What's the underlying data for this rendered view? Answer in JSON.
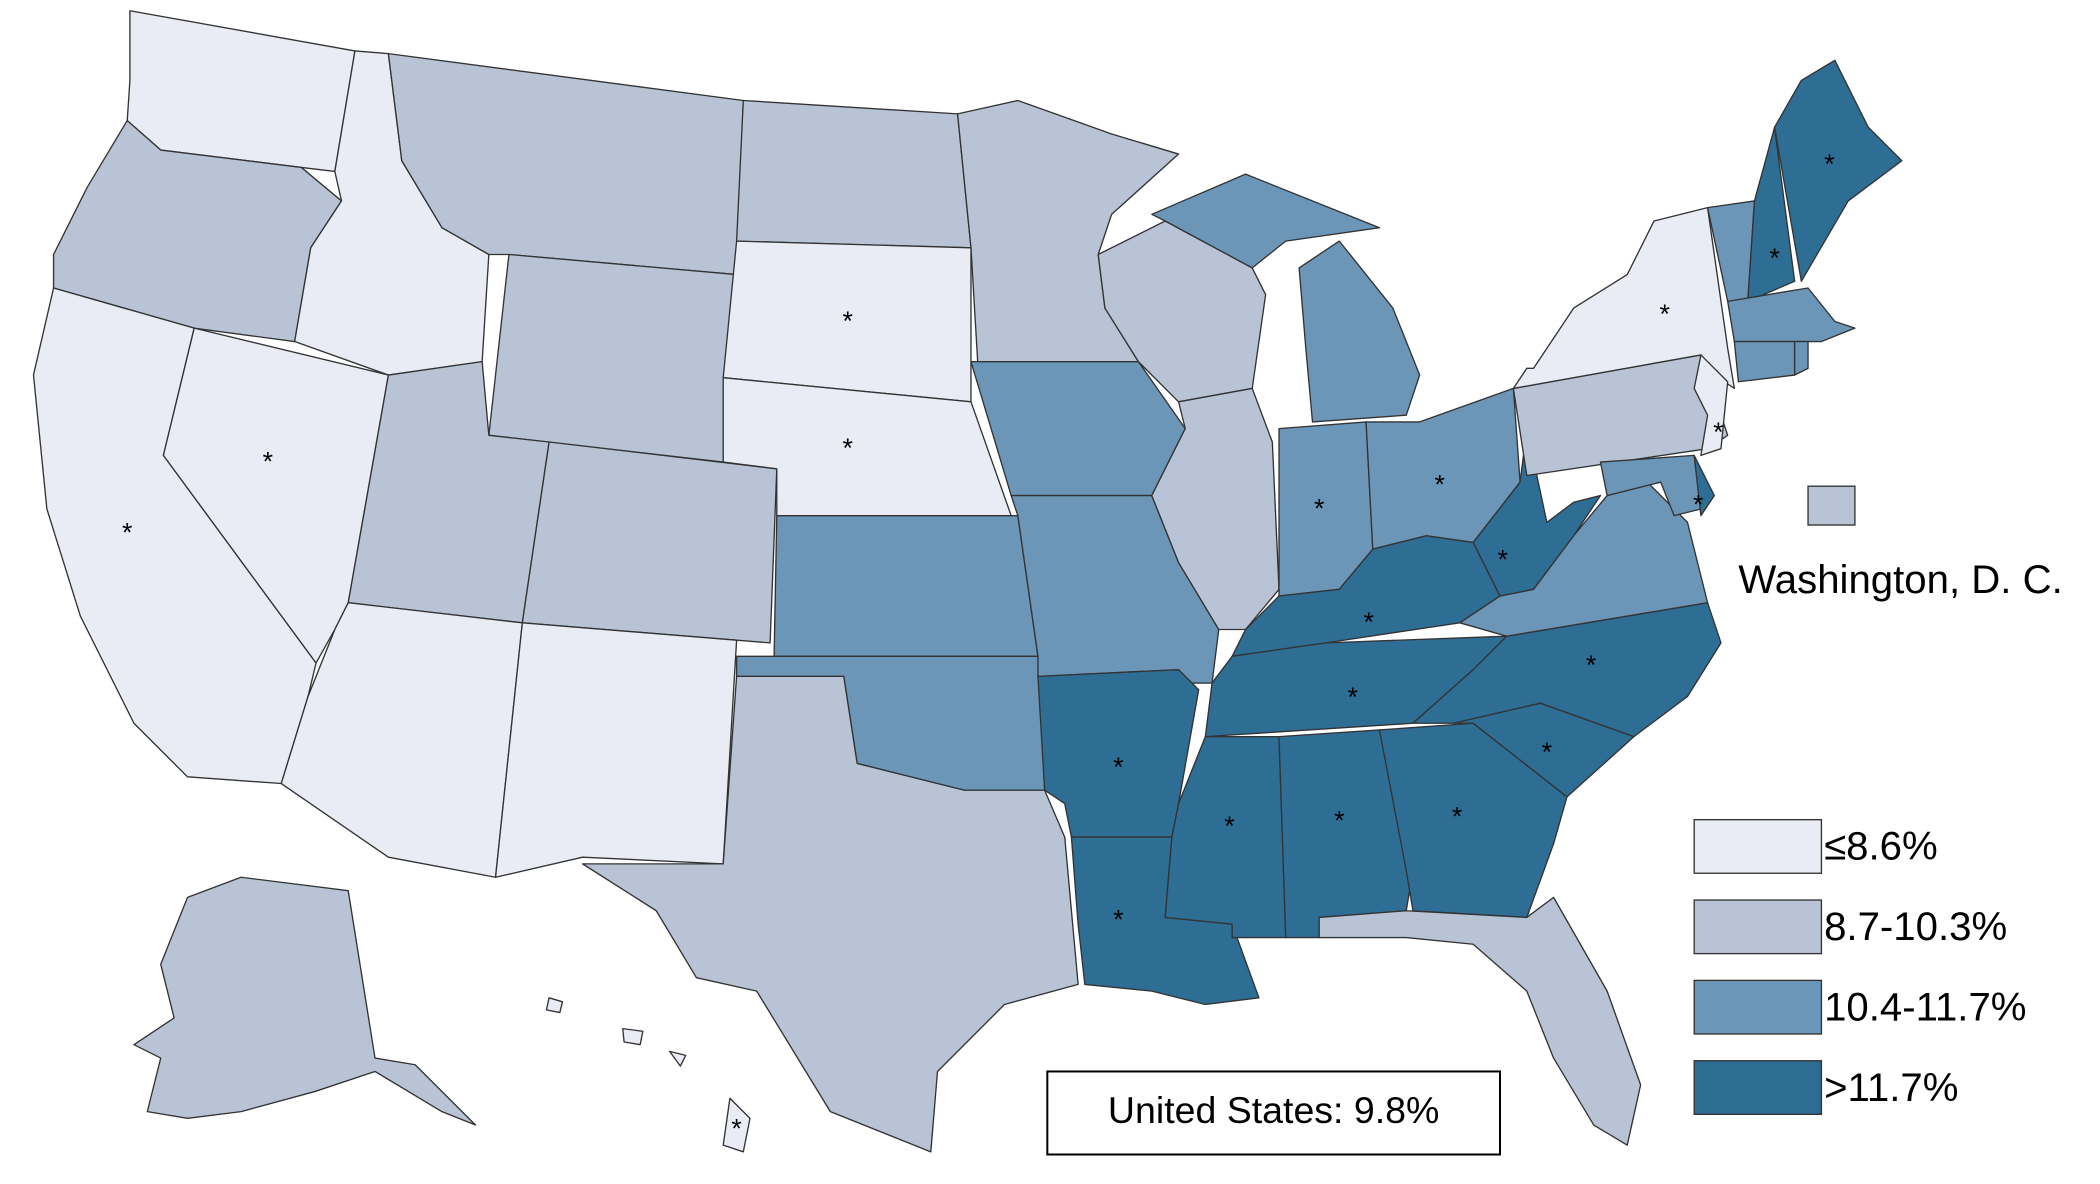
{
  "legend": [
    {
      "label": "≤8.6%",
      "color": "#eaecf5"
    },
    {
      "label": "8.7-10.3%",
      "color": "#b8c4d6"
    },
    {
      "label": "10.4-11.7%",
      "color": "#6b96b8"
    },
    {
      "label": ">11.7%",
      "color": "#2e6d94"
    }
  ],
  "summary": "United States: 9.8%",
  "dc": {
    "label": "Washington, D. C.",
    "color": "#b8c4d6"
  },
  "regions": [
    {
      "color": "#eaecf5"
    },
    {
      "color": "#b8c4d6"
    },
    {
      "color": "#eaecf5",
      "mark": "*"
    },
    {
      "color": "#eaecf5",
      "mark": "*"
    },
    {
      "color": "#eaecf5"
    },
    {
      "color": "#b8c4d6"
    },
    {
      "color": "#b8c4d6"
    },
    {
      "color": "#b8c4d6"
    },
    {
      "color": "#b8c4d6"
    },
    {
      "color": "#eaecf5"
    },
    {
      "color": "#eaecf5"
    },
    {
      "color": "#b8c4d6"
    },
    {
      "color": "#eaecf5",
      "mark": "*"
    },
    {
      "color": "#eaecf5",
      "mark": "*"
    },
    {
      "color": "#6b96b8"
    },
    {
      "color": "#6b96b8"
    },
    {
      "color": "#b8c4d6"
    },
    {
      "color": "#b8c4d6"
    },
    {
      "color": "#6b96b8"
    },
    {
      "color": "#6b96b8"
    },
    {
      "color": "#2e6d94",
      "mark": "*"
    },
    {
      "color": "#2e6d94",
      "mark": "*"
    },
    {
      "color": "#b8c4d6"
    },
    {
      "color": "#b8c4d6"
    },
    {
      "color": "#6b96b8"
    },
    {
      "color": "#6b96b8",
      "mark": "*"
    },
    {
      "color": "#6b96b8",
      "mark": "*"
    },
    {
      "color": "#2e6d94",
      "mark": "*"
    },
    {
      "color": "#2e6d94",
      "mark": "*"
    },
    {
      "color": "#2e6d94",
      "mark": "*"
    },
    {
      "color": "#2e6d94",
      "mark": "*"
    },
    {
      "color": "#2e6d94",
      "mark": "*"
    },
    {
      "color": "#b8c4d6"
    },
    {
      "color": "#2e6d94",
      "mark": "*"
    },
    {
      "color": "#2e6d94",
      "mark": "*"
    },
    {
      "color": "#6b96b8"
    },
    {
      "color": "#2e6d94",
      "mark": "*"
    },
    {
      "color": "#b8c4d6"
    },
    {
      "color": "#eaecf5",
      "mark": "*"
    },
    {
      "color": "#eaecf5",
      "mark": "*"
    },
    {
      "color": "#6b96b8"
    },
    {
      "color": "#2e6d94",
      "mark": "*"
    },
    {
      "color": "#6b96b8"
    },
    {
      "color": "#2e6d94",
      "mark": "*"
    },
    {
      "color": "#2e6d94",
      "mark": "*"
    },
    {
      "color": "#6b96b8"
    },
    {
      "color": "#6b96b8"
    },
    {
      "color": "#6b96b8"
    },
    {
      "color": "#b8c4d6"
    },
    {
      "color": "#eaecf5",
      "mark": "*"
    }
  ]
}
